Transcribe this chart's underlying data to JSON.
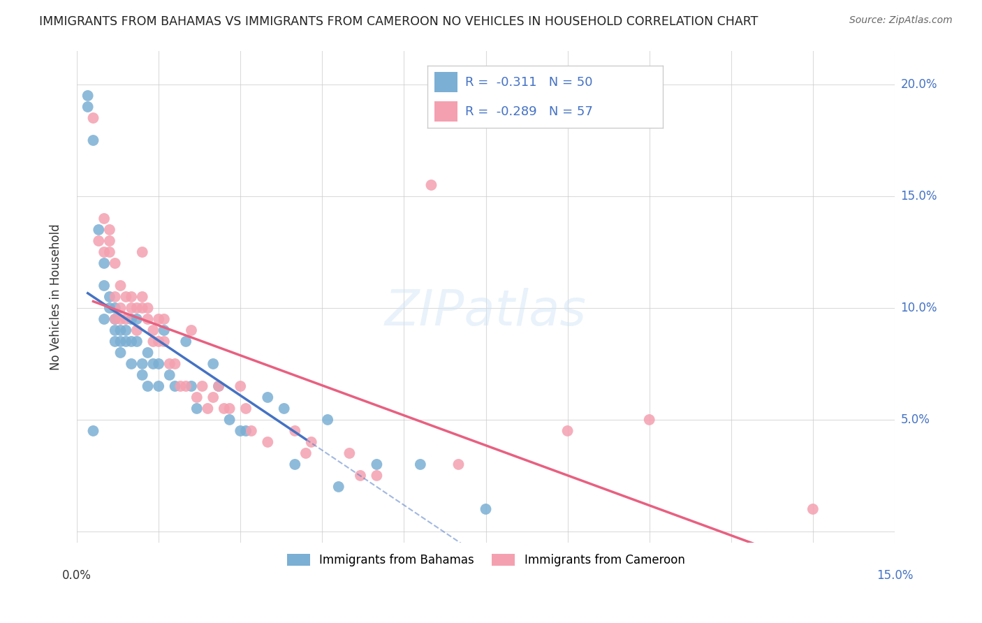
{
  "title": "IMMIGRANTS FROM BAHAMAS VS IMMIGRANTS FROM CAMEROON NO VEHICLES IN HOUSEHOLD CORRELATION CHART",
  "source": "Source: ZipAtlas.com",
  "ylabel": "No Vehicles in Household",
  "xlim": [
    0.0,
    0.15
  ],
  "ylim": [
    -0.005,
    0.215
  ],
  "bahamas_color": "#7bafd4",
  "cameroon_color": "#f4a0b0",
  "bahamas_line_color": "#4472c4",
  "cameroon_line_color": "#e86080",
  "legend_R_bahamas": "-0.311",
  "legend_N_bahamas": "50",
  "legend_R_cameroon": "-0.289",
  "legend_N_cameroon": "57",
  "bahamas_x": [
    0.002,
    0.002,
    0.003,
    0.004,
    0.005,
    0.005,
    0.005,
    0.006,
    0.006,
    0.007,
    0.007,
    0.007,
    0.007,
    0.008,
    0.008,
    0.008,
    0.009,
    0.009,
    0.01,
    0.01,
    0.01,
    0.011,
    0.011,
    0.012,
    0.012,
    0.013,
    0.013,
    0.014,
    0.015,
    0.015,
    0.016,
    0.017,
    0.018,
    0.02,
    0.021,
    0.022,
    0.025,
    0.026,
    0.028,
    0.03,
    0.031,
    0.035,
    0.038,
    0.04,
    0.046,
    0.048,
    0.055,
    0.063,
    0.075,
    0.003
  ],
  "bahamas_y": [
    0.195,
    0.19,
    0.175,
    0.135,
    0.12,
    0.11,
    0.095,
    0.105,
    0.1,
    0.1,
    0.095,
    0.09,
    0.085,
    0.09,
    0.085,
    0.08,
    0.09,
    0.085,
    0.095,
    0.085,
    0.075,
    0.095,
    0.085,
    0.075,
    0.07,
    0.08,
    0.065,
    0.075,
    0.075,
    0.065,
    0.09,
    0.07,
    0.065,
    0.085,
    0.065,
    0.055,
    0.075,
    0.065,
    0.05,
    0.045,
    0.045,
    0.06,
    0.055,
    0.03,
    0.05,
    0.02,
    0.03,
    0.03,
    0.01,
    0.045
  ],
  "cameroon_x": [
    0.003,
    0.004,
    0.005,
    0.005,
    0.006,
    0.006,
    0.006,
    0.007,
    0.007,
    0.007,
    0.008,
    0.008,
    0.008,
    0.009,
    0.009,
    0.01,
    0.01,
    0.011,
    0.011,
    0.012,
    0.012,
    0.012,
    0.013,
    0.013,
    0.014,
    0.014,
    0.015,
    0.015,
    0.016,
    0.016,
    0.017,
    0.018,
    0.019,
    0.02,
    0.021,
    0.022,
    0.023,
    0.024,
    0.025,
    0.026,
    0.027,
    0.028,
    0.03,
    0.031,
    0.032,
    0.035,
    0.04,
    0.042,
    0.043,
    0.05,
    0.052,
    0.055,
    0.065,
    0.07,
    0.09,
    0.105,
    0.135
  ],
  "cameroon_y": [
    0.185,
    0.13,
    0.14,
    0.125,
    0.135,
    0.13,
    0.125,
    0.12,
    0.105,
    0.095,
    0.11,
    0.1,
    0.095,
    0.105,
    0.095,
    0.105,
    0.1,
    0.1,
    0.09,
    0.125,
    0.105,
    0.1,
    0.1,
    0.095,
    0.09,
    0.085,
    0.095,
    0.085,
    0.095,
    0.085,
    0.075,
    0.075,
    0.065,
    0.065,
    0.09,
    0.06,
    0.065,
    0.055,
    0.06,
    0.065,
    0.055,
    0.055,
    0.065,
    0.055,
    0.045,
    0.04,
    0.045,
    0.035,
    0.04,
    0.035,
    0.025,
    0.025,
    0.155,
    0.03,
    0.045,
    0.05,
    0.01
  ]
}
